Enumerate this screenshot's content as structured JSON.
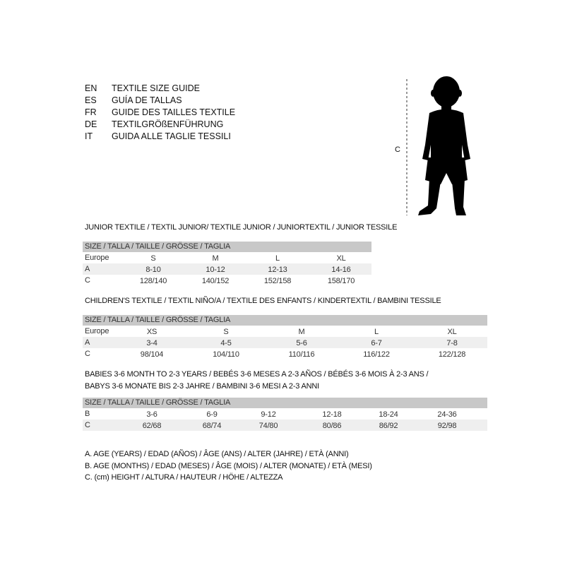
{
  "languages": [
    {
      "code": "EN",
      "title": "TEXTILE SIZE GUIDE"
    },
    {
      "code": "ES",
      "title": "GUÍA DE TALLAS"
    },
    {
      "code": "FR",
      "title": "GUIDE DES TAILLES TEXTILE"
    },
    {
      "code": "DE",
      "title": "TEXTILGRÖßENFÜHRUNG"
    },
    {
      "code": "IT",
      "title": "GUIDA ALLE TAGLIE TESSILI"
    }
  ],
  "figure": {
    "measure_label": "C"
  },
  "tables": [
    {
      "title": "JUNIOR TEXTILE / TEXTIL JUNIOR/ TEXTILE JUNIOR / JUNIORTEXTIL / JUNIOR TESSILE",
      "header": "SIZE / TALLA / TAILLE / GRÖSSE / TAGLIA",
      "rows": [
        {
          "label": "Europe",
          "values": [
            "S",
            "M",
            "L",
            "XL"
          ]
        },
        {
          "label": "A",
          "values": [
            "8-10",
            "10-12",
            "12-13",
            "14-16"
          ]
        },
        {
          "label": "C",
          "values": [
            "128/140",
            "140/152",
            "152/158",
            "158/170"
          ]
        }
      ]
    },
    {
      "title": "CHILDREN'S TEXTILE / TEXTIL NIÑO/A / TEXTILE DES ENFANTS / KINDERTEXTIL / BAMBINI TESSILE",
      "header": "SIZE / TALLA / TAILLE / GRÖSSE / TAGLIA",
      "rows": [
        {
          "label": "Europe",
          "values": [
            "XS",
            "S",
            "M",
            "L",
            "XL"
          ]
        },
        {
          "label": "A",
          "values": [
            "3-4",
            "4-5",
            "5-6",
            "6-7",
            "7-8"
          ]
        },
        {
          "label": "C",
          "values": [
            "98/104",
            "104/110",
            "110/116",
            "116/122",
            "122/128"
          ]
        }
      ]
    },
    {
      "title": "BABIES 3-6 MONTH TO 2-3 YEARS / BEBÉS 3-6 MESES A 2-3 AÑOS / BÉBÉS 3-6 MOIS À 2-3 ANS /",
      "title2": "BABYS 3-6 MONATE BIS 2-3 JAHRE / BAMBINI 3-6 MESI A 2-3 ANNI",
      "header": "SIZE / TALLA / TAILLE / GRÖSSE / TAGLIA",
      "rows": [
        {
          "label": "B",
          "values": [
            "3-6",
            "6-9",
            "9-12",
            "12-18",
            "18-24",
            "24-36"
          ]
        },
        {
          "label": "C",
          "values": [
            "62/68",
            "68/74",
            "74/80",
            "80/86",
            "86/92",
            "92/98"
          ]
        }
      ]
    }
  ],
  "legend": [
    "A. AGE (YEARS) / EDAD (AÑOS) / ÂGE (ANS) / ALTER (JAHRE) / ETÀ (ANNI)",
    "B. AGE (MONTHS) / EDAD (MESES) / ÂGE (MOIS) / ALTER (MONATE) / ETÀ (MESI)",
    "C. (cm) HEIGHT / ALTURA / HAUTEUR / HÖHE / ALTEZZA"
  ]
}
